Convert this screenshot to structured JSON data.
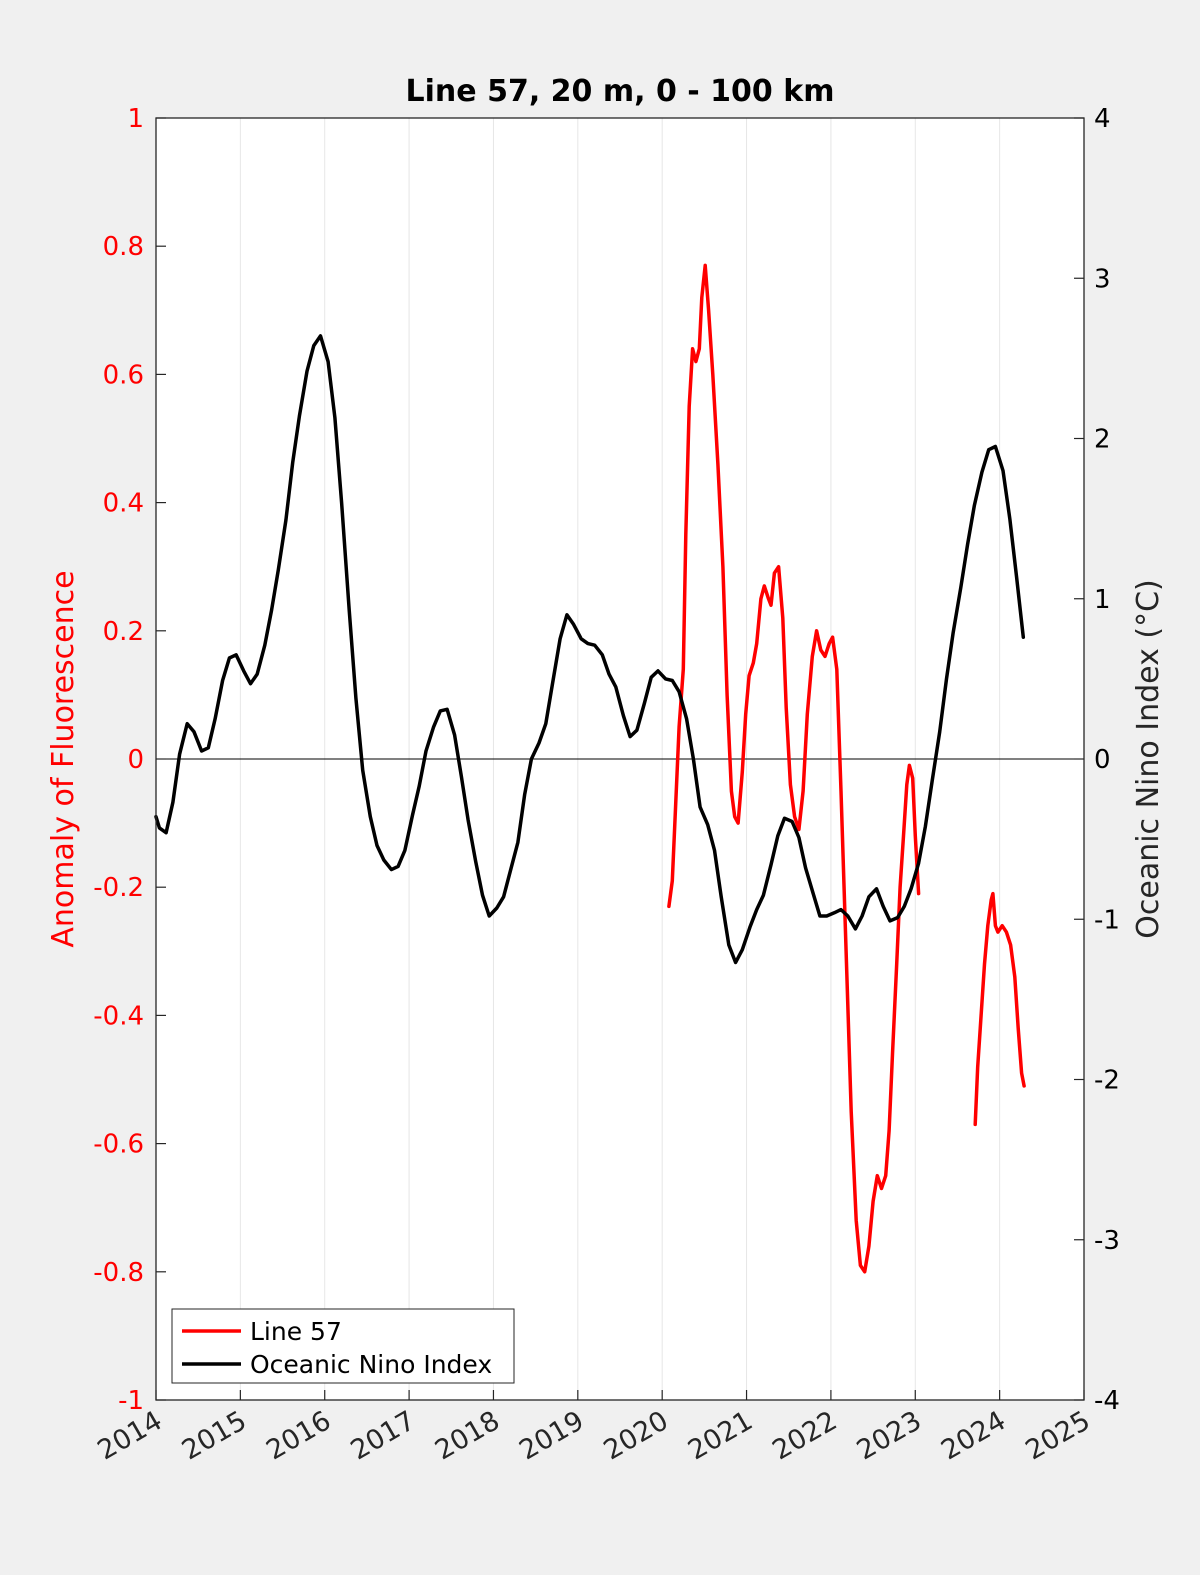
{
  "chart_data": {
    "type": "line",
    "title": "Line 57, 20 m, 0 - 100 km",
    "xlabel": "",
    "ylabel_left": "Anomaly of Fluorescence",
    "ylabel_right": "Oceanic Nino Index (°C)",
    "xlim": [
      2014,
      2025
    ],
    "ylim_left": [
      -1,
      1
    ],
    "ylim_right": [
      -4,
      4
    ],
    "x_ticks": [
      "2014",
      "2015",
      "2016",
      "2017",
      "2018",
      "2019",
      "2020",
      "2021",
      "2022",
      "2023",
      "2024",
      "2025"
    ],
    "y_left_ticks": [
      "1",
      "0.8",
      "0.6",
      "0.4",
      "0.2",
      "0",
      "-0.2",
      "-0.4",
      "-0.6",
      "-0.8",
      "-1"
    ],
    "y_right_ticks": [
      "4",
      "3",
      "2",
      "1",
      "0",
      "-1",
      "-2",
      "-3",
      "-4"
    ],
    "grid": "vertical",
    "zero_line": true,
    "legend_position": "bottom-left",
    "colors": {
      "line57": "#ff0000",
      "oni": "#000000",
      "left_axis": "#ff0000",
      "right_axis": "#000000"
    },
    "series": [
      {
        "name": "Line 57",
        "axis": "left",
        "points": [
          [
            2020.08,
            -0.23
          ],
          [
            2020.12,
            -0.19
          ],
          [
            2020.16,
            -0.07
          ],
          [
            2020.2,
            0.05
          ],
          [
            2020.25,
            0.14
          ],
          [
            2020.28,
            0.35
          ],
          [
            2020.32,
            0.55
          ],
          [
            2020.36,
            0.64
          ],
          [
            2020.4,
            0.62
          ],
          [
            2020.44,
            0.64
          ],
          [
            2020.47,
            0.72
          ],
          [
            2020.51,
            0.77
          ],
          [
            2020.55,
            0.7
          ],
          [
            2020.6,
            0.6
          ],
          [
            2020.66,
            0.46
          ],
          [
            2020.72,
            0.3
          ],
          [
            2020.77,
            0.1
          ],
          [
            2020.82,
            -0.05
          ],
          [
            2020.86,
            -0.09
          ],
          [
            2020.9,
            -0.1
          ],
          [
            2020.95,
            -0.02
          ],
          [
            2020.99,
            0.07
          ],
          [
            2021.03,
            0.13
          ],
          [
            2021.08,
            0.15
          ],
          [
            2021.12,
            0.18
          ],
          [
            2021.17,
            0.25
          ],
          [
            2021.21,
            0.27
          ],
          [
            2021.26,
            0.25
          ],
          [
            2021.29,
            0.24
          ],
          [
            2021.33,
            0.29
          ],
          [
            2021.38,
            0.3
          ],
          [
            2021.43,
            0.22
          ],
          [
            2021.47,
            0.08
          ],
          [
            2021.52,
            -0.04
          ],
          [
            2021.57,
            -0.09
          ],
          [
            2021.62,
            -0.11
          ],
          [
            2021.67,
            -0.05
          ],
          [
            2021.72,
            0.07
          ],
          [
            2021.78,
            0.16
          ],
          [
            2021.83,
            0.2
          ],
          [
            2021.88,
            0.17
          ],
          [
            2021.93,
            0.16
          ],
          [
            2021.98,
            0.18
          ],
          [
            2022.02,
            0.19
          ],
          [
            2022.07,
            0.14
          ],
          [
            2022.12,
            -0.05
          ],
          [
            2022.18,
            -0.3
          ],
          [
            2022.24,
            -0.55
          ],
          [
            2022.3,
            -0.72
          ],
          [
            2022.35,
            -0.79
          ],
          [
            2022.4,
            -0.8
          ],
          [
            2022.45,
            -0.76
          ],
          [
            2022.5,
            -0.69
          ],
          [
            2022.55,
            -0.65
          ],
          [
            2022.6,
            -0.67
          ],
          [
            2022.65,
            -0.65
          ],
          [
            2022.69,
            -0.58
          ],
          [
            2022.73,
            -0.46
          ],
          [
            2022.78,
            -0.32
          ],
          [
            2022.82,
            -0.2
          ],
          [
            2022.86,
            -0.12
          ],
          [
            2022.9,
            -0.04
          ],
          [
            2022.93,
            -0.01
          ],
          [
            2022.97,
            -0.03
          ],
          [
            2023.0,
            -0.12
          ],
          [
            2023.04,
            -0.21
          ]
        ]
      },
      {
        "name": "",
        "axis": "left",
        "points": [
          [
            2023.71,
            -0.57
          ],
          [
            2023.74,
            -0.48
          ],
          [
            2023.78,
            -0.4
          ],
          [
            2023.82,
            -0.32
          ],
          [
            2023.86,
            -0.26
          ],
          [
            2023.9,
            -0.22
          ],
          [
            2023.92,
            -0.21
          ],
          [
            2023.95,
            -0.26
          ],
          [
            2023.98,
            -0.27
          ],
          [
            2024.03,
            -0.26
          ],
          [
            2024.08,
            -0.27
          ],
          [
            2024.13,
            -0.29
          ],
          [
            2024.18,
            -0.34
          ],
          [
            2024.22,
            -0.42
          ],
          [
            2024.26,
            -0.49
          ],
          [
            2024.29,
            -0.51
          ]
        ]
      },
      {
        "name": "Oceanic Nino Index",
        "axis": "right",
        "points": [
          [
            2014.0,
            -0.36
          ],
          [
            2014.04,
            -0.43
          ],
          [
            2014.12,
            -0.46
          ],
          [
            2014.2,
            -0.27
          ],
          [
            2014.28,
            0.03
          ],
          [
            2014.37,
            0.22
          ],
          [
            2014.45,
            0.17
          ],
          [
            2014.54,
            0.05
          ],
          [
            2014.62,
            0.07
          ],
          [
            2014.7,
            0.25
          ],
          [
            2014.79,
            0.49
          ],
          [
            2014.87,
            0.63
          ],
          [
            2014.95,
            0.65
          ],
          [
            2015.04,
            0.55
          ],
          [
            2015.12,
            0.47
          ],
          [
            2015.2,
            0.53
          ],
          [
            2015.29,
            0.71
          ],
          [
            2015.37,
            0.93
          ],
          [
            2015.45,
            1.18
          ],
          [
            2015.54,
            1.49
          ],
          [
            2015.62,
            1.85
          ],
          [
            2015.7,
            2.14
          ],
          [
            2015.79,
            2.42
          ],
          [
            2015.87,
            2.58
          ],
          [
            2015.95,
            2.64
          ],
          [
            2016.04,
            2.48
          ],
          [
            2016.12,
            2.13
          ],
          [
            2016.2,
            1.6
          ],
          [
            2016.29,
            0.93
          ],
          [
            2016.37,
            0.38
          ],
          [
            2016.45,
            -0.07
          ],
          [
            2016.54,
            -0.36
          ],
          [
            2016.62,
            -0.54
          ],
          [
            2016.7,
            -0.63
          ],
          [
            2016.79,
            -0.69
          ],
          [
            2016.87,
            -0.67
          ],
          [
            2016.95,
            -0.57
          ],
          [
            2017.04,
            -0.35
          ],
          [
            2017.12,
            -0.17
          ],
          [
            2017.2,
            0.05
          ],
          [
            2017.29,
            0.2
          ],
          [
            2017.37,
            0.3
          ],
          [
            2017.45,
            0.31
          ],
          [
            2017.54,
            0.15
          ],
          [
            2017.62,
            -0.11
          ],
          [
            2017.7,
            -0.38
          ],
          [
            2017.79,
            -0.64
          ],
          [
            2017.87,
            -0.85
          ],
          [
            2017.95,
            -0.98
          ],
          [
            2018.04,
            -0.93
          ],
          [
            2018.12,
            -0.86
          ],
          [
            2018.2,
            -0.7
          ],
          [
            2018.29,
            -0.52
          ],
          [
            2018.37,
            -0.22
          ],
          [
            2018.45,
            0.0
          ],
          [
            2018.54,
            0.1
          ],
          [
            2018.62,
            0.22
          ],
          [
            2018.7,
            0.47
          ],
          [
            2018.79,
            0.75
          ],
          [
            2018.87,
            0.9
          ],
          [
            2018.95,
            0.84
          ],
          [
            2019.04,
            0.75
          ],
          [
            2019.12,
            0.72
          ],
          [
            2019.2,
            0.71
          ],
          [
            2019.29,
            0.65
          ],
          [
            2019.37,
            0.53
          ],
          [
            2019.45,
            0.45
          ],
          [
            2019.54,
            0.27
          ],
          [
            2019.62,
            0.14
          ],
          [
            2019.7,
            0.18
          ],
          [
            2019.79,
            0.35
          ],
          [
            2019.87,
            0.51
          ],
          [
            2019.95,
            0.55
          ],
          [
            2020.04,
            0.5
          ],
          [
            2020.12,
            0.49
          ],
          [
            2020.2,
            0.42
          ],
          [
            2020.29,
            0.25
          ],
          [
            2020.37,
            0.0
          ],
          [
            2020.45,
            -0.3
          ],
          [
            2020.54,
            -0.41
          ],
          [
            2020.62,
            -0.57
          ],
          [
            2020.7,
            -0.86
          ],
          [
            2020.79,
            -1.16
          ],
          [
            2020.87,
            -1.27
          ],
          [
            2020.95,
            -1.19
          ],
          [
            2021.04,
            -1.05
          ],
          [
            2021.12,
            -0.94
          ],
          [
            2021.2,
            -0.85
          ],
          [
            2021.29,
            -0.66
          ],
          [
            2021.37,
            -0.48
          ],
          [
            2021.45,
            -0.37
          ],
          [
            2021.54,
            -0.39
          ],
          [
            2021.62,
            -0.49
          ],
          [
            2021.7,
            -0.68
          ],
          [
            2021.79,
            -0.84
          ],
          [
            2021.87,
            -0.98
          ],
          [
            2021.95,
            -0.98
          ],
          [
            2022.04,
            -0.96
          ],
          [
            2022.12,
            -0.94
          ],
          [
            2022.2,
            -0.98
          ],
          [
            2022.29,
            -1.06
          ],
          [
            2022.37,
            -0.98
          ],
          [
            2022.45,
            -0.86
          ],
          [
            2022.54,
            -0.81
          ],
          [
            2022.62,
            -0.92
          ],
          [
            2022.7,
            -1.01
          ],
          [
            2022.79,
            -0.99
          ],
          [
            2022.87,
            -0.92
          ],
          [
            2022.95,
            -0.81
          ],
          [
            2023.04,
            -0.65
          ],
          [
            2023.12,
            -0.42
          ],
          [
            2023.2,
            -0.14
          ],
          [
            2023.29,
            0.17
          ],
          [
            2023.37,
            0.5
          ],
          [
            2023.45,
            0.79
          ],
          [
            2023.54,
            1.07
          ],
          [
            2023.62,
            1.34
          ],
          [
            2023.7,
            1.58
          ],
          [
            2023.79,
            1.79
          ],
          [
            2023.87,
            1.93
          ],
          [
            2023.95,
            1.95
          ],
          [
            2024.04,
            1.8
          ],
          [
            2024.12,
            1.5
          ],
          [
            2024.2,
            1.14
          ],
          [
            2024.28,
            0.76
          ]
        ]
      }
    ],
    "legend": [
      "Line 57",
      "Oceanic Nino Index"
    ]
  }
}
